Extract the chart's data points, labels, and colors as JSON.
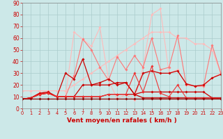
{
  "background_color": "#cce8e8",
  "grid_color": "#aacccc",
  "xlabel": "Vent moyen/en rafales ( km/h )",
  "xlabel_color": "#cc0000",
  "xlabel_fontsize": 6.5,
  "tick_color": "#cc0000",
  "tick_fontsize": 5.5,
  "ylim": [
    0,
    90
  ],
  "xlim": [
    0,
    23
  ],
  "yticks": [
    0,
    10,
    20,
    30,
    40,
    50,
    60,
    70,
    80,
    90
  ],
  "xticks": [
    0,
    1,
    2,
    3,
    4,
    5,
    6,
    7,
    8,
    9,
    10,
    11,
    12,
    13,
    14,
    15,
    16,
    17,
    18,
    19,
    20,
    21,
    22,
    23
  ],
  "series": [
    {
      "x": [
        0,
        1,
        2,
        3,
        4,
        5,
        6,
        7,
        8,
        9,
        10,
        11,
        12,
        13,
        14,
        15,
        16,
        17,
        18,
        19,
        20,
        21,
        22,
        23
      ],
      "y": [
        15,
        15,
        15,
        15,
        15,
        15,
        20,
        25,
        30,
        35,
        40,
        45,
        50,
        55,
        60,
        65,
        65,
        65,
        60,
        60,
        55,
        55,
        50,
        30
      ],
      "color": "#ffbbbb",
      "lw": 0.8,
      "marker": "D",
      "ms": 1.8
    },
    {
      "x": [
        0,
        1,
        2,
        3,
        4,
        5,
        6,
        7,
        8,
        9,
        10,
        11,
        12,
        13,
        14,
        15,
        16,
        17,
        18,
        19,
        20,
        21,
        22,
        23
      ],
      "y": [
        8,
        9,
        13,
        14,
        10,
        10,
        65,
        59,
        53,
        69,
        24,
        8,
        12,
        7,
        35,
        80,
        85,
        30,
        33,
        20,
        19,
        19,
        26,
        30
      ],
      "color": "#ffbbbb",
      "lw": 0.8,
      "marker": "D",
      "ms": 1.8
    },
    {
      "x": [
        0,
        1,
        2,
        3,
        4,
        5,
        6,
        7,
        8,
        9,
        10,
        11,
        12,
        13,
        14,
        15,
        16,
        17,
        18,
        19,
        20,
        21,
        22,
        23
      ],
      "y": [
        8,
        9,
        13,
        14,
        10,
        10,
        28,
        59,
        50,
        35,
        24,
        44,
        33,
        45,
        35,
        60,
        33,
        35,
        62,
        20,
        19,
        19,
        54,
        30
      ],
      "color": "#ff7777",
      "lw": 0.8,
      "marker": "D",
      "ms": 1.8
    },
    {
      "x": [
        0,
        1,
        2,
        3,
        4,
        5,
        6,
        7,
        8,
        9,
        10,
        11,
        12,
        13,
        14,
        15,
        16,
        17,
        18,
        19,
        20,
        21,
        22,
        23
      ],
      "y": [
        8,
        9,
        13,
        14,
        10,
        30,
        25,
        42,
        20,
        22,
        25,
        20,
        22,
        12,
        30,
        32,
        30,
        30,
        32,
        21,
        19,
        20,
        26,
        29
      ],
      "color": "#cc0000",
      "lw": 0.9,
      "marker": "D",
      "ms": 1.8
    },
    {
      "x": [
        0,
        1,
        2,
        3,
        4,
        5,
        6,
        7,
        8,
        9,
        10,
        11,
        12,
        13,
        14,
        15,
        16,
        17,
        18,
        19,
        20,
        21,
        22,
        23
      ],
      "y": [
        8,
        9,
        12,
        13,
        10,
        10,
        10,
        20,
        20,
        20,
        20,
        22,
        22,
        12,
        9,
        9,
        9,
        9,
        9,
        9,
        9,
        9,
        9,
        8
      ],
      "color": "#cc0000",
      "lw": 0.9,
      "marker": "D",
      "ms": 1.8
    },
    {
      "x": [
        0,
        1,
        2,
        3,
        4,
        5,
        6,
        7,
        8,
        9,
        10,
        11,
        12,
        13,
        14,
        15,
        16,
        17,
        18,
        19,
        20,
        21,
        22,
        23
      ],
      "y": [
        8,
        9,
        12,
        13,
        10,
        10,
        10,
        10,
        10,
        10,
        12,
        12,
        12,
        12,
        14,
        14,
        14,
        14,
        14,
        14,
        14,
        14,
        9,
        9
      ],
      "color": "#cc0000",
      "lw": 0.9,
      "marker": "D",
      "ms": 1.8
    },
    {
      "x": [
        0,
        1,
        2,
        3,
        4,
        5,
        6,
        7,
        8,
        9,
        10,
        11,
        12,
        13,
        14,
        15,
        16,
        17,
        18,
        19,
        20,
        21,
        22,
        23
      ],
      "y": [
        8,
        9,
        12,
        13,
        10,
        10,
        10,
        10,
        10,
        10,
        12,
        12,
        12,
        30,
        14,
        36,
        13,
        10,
        20,
        9,
        9,
        9,
        9,
        8
      ],
      "color": "#ee3333",
      "lw": 0.8,
      "marker": "D",
      "ms": 1.8
    },
    {
      "x": [
        0,
        1,
        2,
        3,
        4,
        5,
        6,
        7,
        8,
        9,
        10,
        11,
        12,
        13,
        14,
        15,
        16,
        17,
        18,
        19,
        20,
        21,
        22,
        23
      ],
      "y": [
        8,
        8,
        8,
        8,
        8,
        8,
        8,
        8,
        8,
        8,
        8,
        8,
        8,
        8,
        8,
        8,
        8,
        8,
        8,
        8,
        8,
        8,
        8,
        8
      ],
      "color": "#880000",
      "lw": 0.9,
      "marker": "D",
      "ms": 1.8
    }
  ]
}
